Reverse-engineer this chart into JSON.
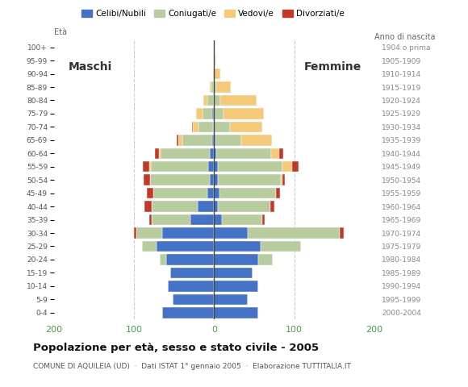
{
  "age_groups_bottom_to_top": [
    "0-4",
    "5-9",
    "10-14",
    "15-19",
    "20-24",
    "25-29",
    "30-34",
    "35-39",
    "40-44",
    "45-49",
    "50-54",
    "55-59",
    "60-64",
    "65-69",
    "70-74",
    "75-79",
    "80-84",
    "85-89",
    "90-94",
    "95-99",
    "100+"
  ],
  "birth_years_bottom_to_top": [
    "2000-2004",
    "1995-1999",
    "1990-1994",
    "1985-1989",
    "1980-1984",
    "1975-1979",
    "1970-1974",
    "1965-1969",
    "1960-1964",
    "1955-1959",
    "1950-1954",
    "1945-1949",
    "1940-1944",
    "1935-1939",
    "1930-1934",
    "1925-1929",
    "1920-1924",
    "1915-1919",
    "1910-1914",
    "1905-1909",
    "1904 o prima"
  ],
  "colors": {
    "celibi": "#4472c4",
    "coniugati": "#b8cca0",
    "vedovi": "#f5c97a",
    "divorziati": "#c0392b"
  },
  "legend_labels": [
    "Celibi/Nubili",
    "Coniugati/e",
    "Vedovi/e",
    "Divorziati/e"
  ],
  "males_bottom_to_top": {
    "celibi": [
      65,
      52,
      58,
      55,
      60,
      72,
      65,
      30,
      20,
      8,
      5,
      7,
      5,
      2,
      1,
      2,
      0,
      0,
      0,
      0,
      0
    ],
    "coniugati": [
      0,
      0,
      0,
      0,
      8,
      18,
      32,
      48,
      58,
      68,
      75,
      72,
      62,
      38,
      18,
      12,
      8,
      3,
      1,
      0,
      0
    ],
    "vedovi": [
      0,
      0,
      0,
      0,
      0,
      0,
      0,
      0,
      0,
      0,
      0,
      2,
      2,
      5,
      8,
      8,
      5,
      2,
      0,
      0,
      0
    ],
    "divorziati": [
      0,
      0,
      0,
      0,
      0,
      0,
      3,
      3,
      9,
      8,
      8,
      8,
      5,
      2,
      1,
      0,
      0,
      0,
      0,
      0,
      0
    ]
  },
  "females_bottom_to_top": {
    "nubili": [
      55,
      42,
      55,
      48,
      55,
      58,
      42,
      10,
      5,
      7,
      5,
      5,
      3,
      2,
      0,
      0,
      0,
      0,
      0,
      0,
      0
    ],
    "coniugate": [
      0,
      0,
      0,
      0,
      18,
      50,
      115,
      50,
      65,
      70,
      78,
      80,
      68,
      32,
      20,
      12,
      8,
      3,
      0,
      0,
      0
    ],
    "vedove": [
      0,
      0,
      0,
      0,
      0,
      0,
      0,
      0,
      0,
      0,
      2,
      12,
      10,
      38,
      40,
      50,
      45,
      18,
      8,
      2,
      0
    ],
    "divorziate": [
      0,
      0,
      0,
      0,
      0,
      0,
      5,
      3,
      5,
      5,
      3,
      8,
      5,
      0,
      0,
      0,
      0,
      0,
      0,
      0,
      0
    ]
  },
  "title": "Popolazione per età, sesso e stato civile - 2005",
  "subtitle": "COMUNE DI AQUILEIA (UD)  ·  Dati ISTAT 1° gennaio 2005  ·  Elaborazione TUTTITALIA.IT",
  "xlim": 200,
  "background_color": "#ffffff",
  "grid_color": "#cccccc"
}
